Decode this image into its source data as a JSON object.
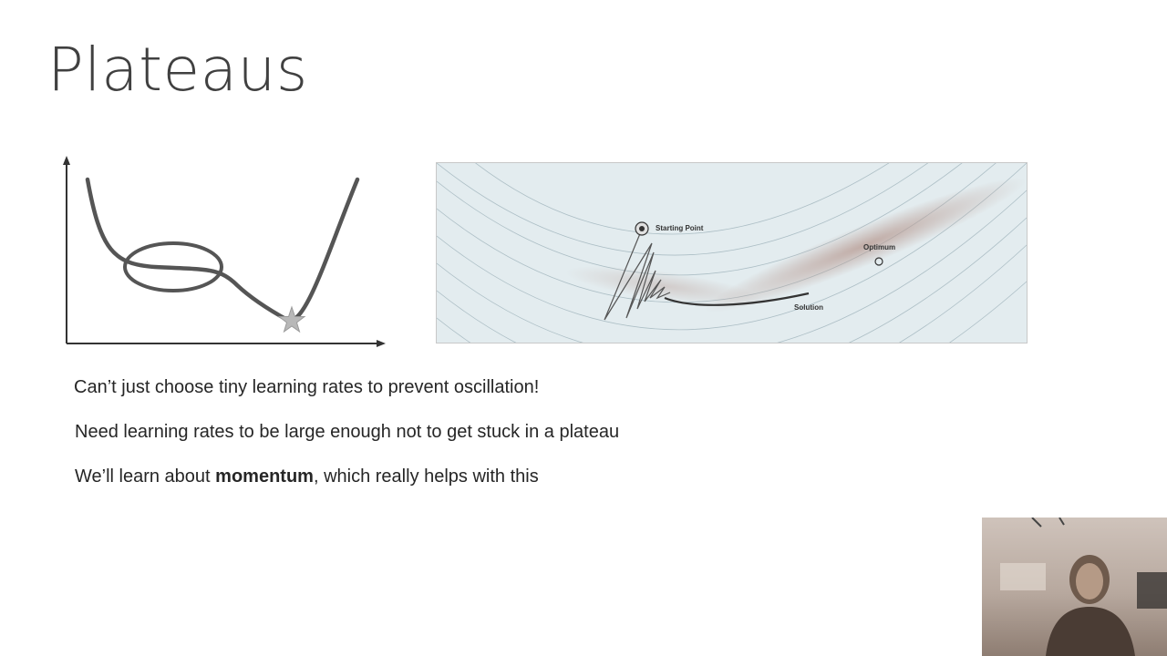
{
  "slide": {
    "title": "Plateaus"
  },
  "contour_figure": {
    "start_label": "Starting Point",
    "optimum_label": "Optimum",
    "solution_label": "Solution"
  },
  "bullets": [
    {
      "text": "Can’t just choose tiny learning rates to prevent oscillation!"
    },
    {
      "text": "Need learning rates to be large enough not to get stuck in a plateau"
    },
    {
      "before": "We’ll learn about ",
      "bold": "momentum",
      "after": ", which really helps with this"
    }
  ]
}
